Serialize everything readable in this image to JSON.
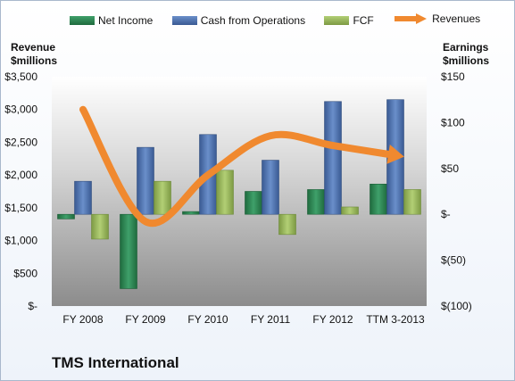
{
  "company_name": "TMS International",
  "colors": {
    "net_income": "#2e8b57",
    "cash_from_operations": "#4f73b0",
    "fcf": "#9bbb59",
    "revenues": "#f0892f",
    "plot_bg_top": "#ffffff",
    "plot_bg_bottom": "#8c8c8c"
  },
  "chart_data": {
    "type": "bar",
    "categories": [
      "FY 2008",
      "FY 2009",
      "FY 2010",
      "FY 2011",
      "FY 2012",
      "TTM 3-2013"
    ],
    "left_axis": {
      "title": "Revenue\n$millions",
      "ylim": [
        0,
        3500
      ],
      "ticks": [
        0,
        500,
        1000,
        1500,
        2000,
        2500,
        3000,
        3500
      ],
      "tick_labels": [
        "$-",
        "$500",
        "$1,000",
        "$1,500",
        "$2,000",
        "$2,500",
        "$3,000",
        "$3,500"
      ]
    },
    "right_axis": {
      "title": "Earnings\n$millions",
      "ylim": [
        -100,
        150
      ],
      "ticks": [
        -100,
        -50,
        0,
        50,
        100,
        150
      ],
      "tick_labels": [
        "$(100)",
        "$(50)",
        "$-",
        "$50",
        "$100",
        "$150"
      ]
    },
    "series": [
      {
        "name": "Net Income",
        "type": "bar",
        "axis": "right",
        "values": [
          -5,
          -81,
          3,
          25,
          27,
          33
        ]
      },
      {
        "name": "Cash from Operations",
        "type": "bar",
        "axis": "right",
        "values": [
          36,
          73,
          87,
          59,
          123,
          125
        ]
      },
      {
        "name": "FCF",
        "type": "bar",
        "axis": "right",
        "values": [
          -27,
          36,
          48,
          -22,
          8,
          27
        ]
      },
      {
        "name": "Revenues",
        "type": "line",
        "axis": "left",
        "values": [
          3000,
          1290,
          2000,
          2600,
          2450,
          2300
        ]
      }
    ],
    "legend_position": "top",
    "grid": false
  }
}
